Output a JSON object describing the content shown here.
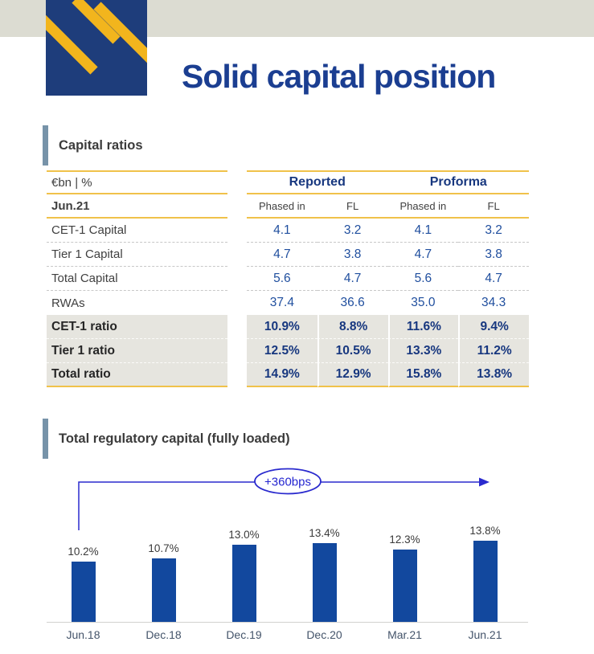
{
  "page": {
    "title": "Solid capital position"
  },
  "logo": {
    "name": "company-logo"
  },
  "colors": {
    "band": "#dcdcd2",
    "logo_blue": "#1e3d7b",
    "logo_yellow": "#f2b51d",
    "title_navy": "#1b3e91",
    "accent_yellow": "#f0c24a",
    "group_navy": "#17377f",
    "value_blue": "#1f4e9e",
    "row_grey": "#e6e5df",
    "section_bar": "#7793a9",
    "bar_blue": "#12489e",
    "arrow_blue": "#2a2ace"
  },
  "sections": {
    "capital_ratios_heading": "Capital ratios",
    "chart_heading": "Total regulatory capital (fully loaded)"
  },
  "table": {
    "unit_label": "€bn | %",
    "period_label": "Jun.21",
    "group_headers": [
      "Reported",
      "Proforma"
    ],
    "sub_headers": [
      "Phased in",
      "FL",
      "Phased in",
      "FL"
    ],
    "rows": [
      {
        "label": "CET-1 Capital",
        "values": [
          "4.1",
          "3.2",
          "4.1",
          "3.2"
        ],
        "highlight": false
      },
      {
        "label": "Tier 1 Capital",
        "values": [
          "4.7",
          "3.8",
          "4.7",
          "3.8"
        ],
        "highlight": false
      },
      {
        "label": "Total Capital",
        "values": [
          "5.6",
          "4.7",
          "5.6",
          "4.7"
        ],
        "highlight": false
      },
      {
        "label": "RWAs",
        "values": [
          "37.4",
          "36.6",
          "35.0",
          "34.3"
        ],
        "highlight": false
      },
      {
        "label": "CET-1 ratio",
        "values": [
          "10.9%",
          "8.8%",
          "11.6%",
          "9.4%"
        ],
        "highlight": true
      },
      {
        "label": "Tier 1 ratio",
        "values": [
          "12.5%",
          "10.5%",
          "13.3%",
          "11.2%"
        ],
        "highlight": true
      },
      {
        "label": "Total ratio",
        "values": [
          "14.9%",
          "12.9%",
          "15.8%",
          "13.8%"
        ],
        "highlight": true
      }
    ]
  },
  "chart_data": {
    "type": "bar",
    "title": "Total regulatory capital (fully loaded)",
    "categories": [
      "Jun.18",
      "Dec.18",
      "Dec.19",
      "Dec.20",
      "Mar.21",
      "Jun.21"
    ],
    "values": [
      10.2,
      10.7,
      13.0,
      13.4,
      12.3,
      13.8
    ],
    "data_labels": [
      "10.2%",
      "10.7%",
      "13.0%",
      "13.4%",
      "12.3%",
      "13.8%"
    ],
    "annotation": "+360bps",
    "unit": "%",
    "ylim": [
      0,
      15
    ],
    "grid": false,
    "legend": false,
    "bar_color": "#12489e"
  }
}
